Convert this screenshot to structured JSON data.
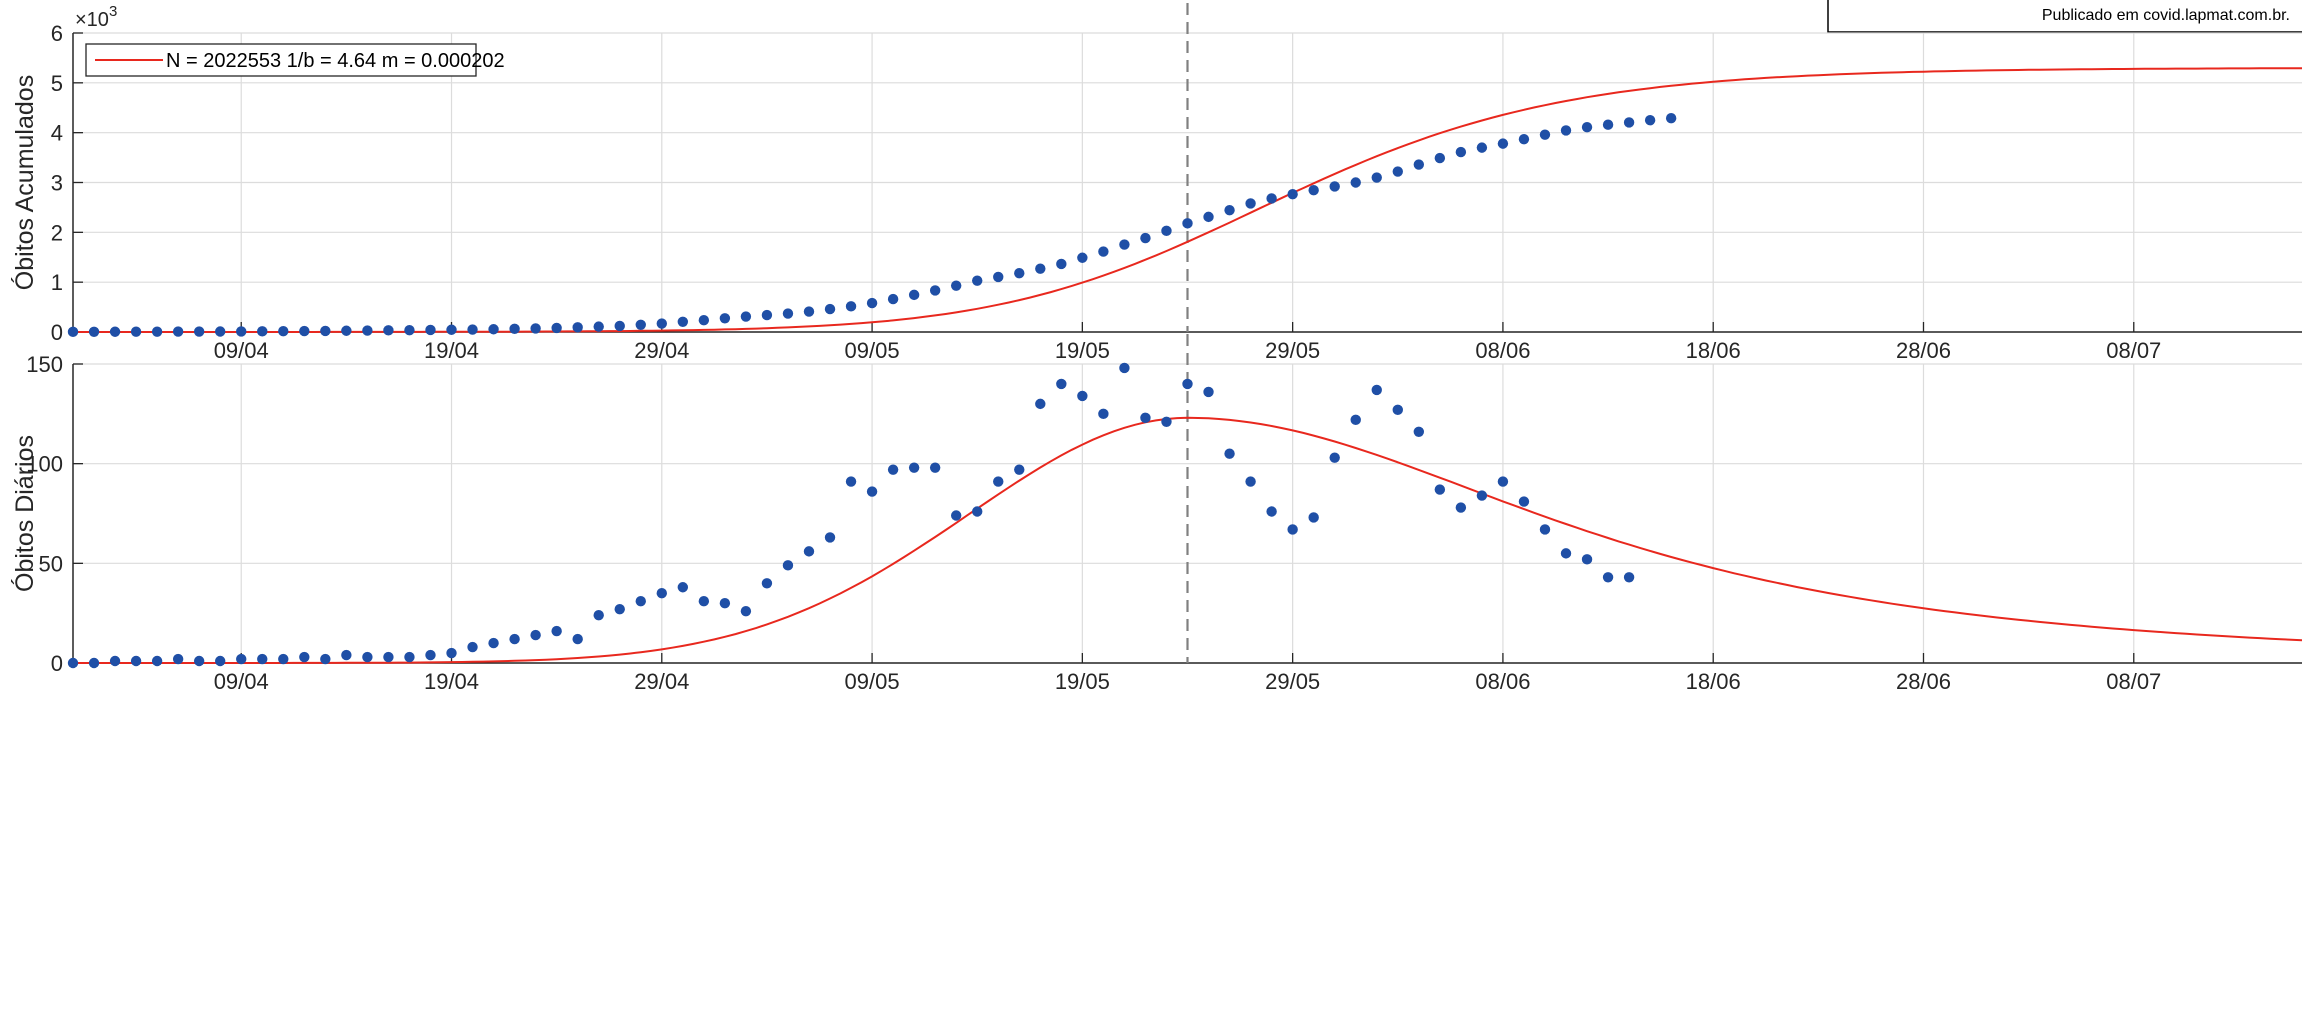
{
  "credit": "Publicado em covid.lapmat.com.br.",
  "colors": {
    "fit": "#e8281e",
    "points": "#1f4fa6",
    "grid": "#dcdcdc",
    "axis": "#262626",
    "peak_line": "#808080"
  },
  "chart_data": [
    {
      "type": "scatter",
      "ylabel": "Óbitos Acumulados",
      "y_multiplier": "×10",
      "y_multiplier_exp": "3",
      "x_tick_labels": [
        "09/04",
        "19/04",
        "29/04",
        "09/05",
        "19/05",
        "29/05",
        "08/06",
        "18/06",
        "28/06",
        "08/07"
      ],
      "y_tick_labels": [
        "0",
        "1",
        "2",
        "3",
        "4",
        "5",
        "6"
      ],
      "ylim": [
        0,
        6000
      ],
      "xlim": [
        "2020-04-01",
        "2020-07-16"
      ],
      "grid": true,
      "legend": {
        "position": "top-left",
        "entries": [
          "N = 2022553 1/b = 4.64 m = 0.000202"
        ]
      },
      "peak_marker_date": "2020-05-24",
      "series": [
        {
          "kind": "observed",
          "x_start": "2020-04-01",
          "values": [
            3,
            4,
            5,
            6,
            7,
            8,
            9,
            10,
            11,
            13,
            16,
            19,
            22,
            25,
            29,
            33,
            37,
            41,
            45,
            49,
            55,
            63,
            72,
            82,
            94,
            108,
            121,
            145,
            170,
            205,
            237,
            275,
            310,
            340,
            370,
            410,
            460,
            515,
            580,
            660,
            745,
            835,
            930,
            1030,
            1105,
            1180,
            1270,
            1365,
            1490,
            1615,
            1755,
            1885,
            2030,
            2180,
            2310,
            2445,
            2580,
            2680,
            2765,
            2845,
            2920,
            3000,
            3100,
            3220,
            3360,
            3490,
            3610,
            3700,
            3780,
            3870,
            3960,
            4045,
            4110,
            4160,
            4205,
            4250,
            4290
          ]
        },
        {
          "kind": "fit",
          "x_start": "2020-04-01",
          "x_end": "2020-07-16",
          "peak_date": "2020-05-24",
          "peak_value": 2200,
          "final_value": 5300,
          "growth_rate_b": 0.2155,
          "asymmetry_m": 0.000202
        }
      ]
    },
    {
      "type": "scatter",
      "ylabel": "Óbitos Diários",
      "x_tick_labels": [
        "09/04",
        "19/04",
        "29/04",
        "09/05",
        "19/05",
        "29/05",
        "08/06",
        "18/06",
        "28/06",
        "08/07"
      ],
      "y_tick_labels": [
        "0",
        "50",
        "100",
        "150"
      ],
      "ylim": [
        0,
        150
      ],
      "xlim": [
        "2020-04-01",
        "2020-07-16"
      ],
      "grid": true,
      "peak_marker_date": "2020-05-24",
      "series": [
        {
          "kind": "observed",
          "x_start": "2020-04-01",
          "values": [
            0,
            0,
            1,
            1,
            1,
            2,
            1,
            1,
            2,
            2,
            2,
            3,
            2,
            4,
            3,
            3,
            3,
            4,
            5,
            8,
            10,
            12,
            14,
            16,
            12,
            24,
            27,
            31,
            35,
            38,
            31,
            30,
            26,
            40,
            49,
            56,
            63,
            91,
            86,
            97,
            98,
            98,
            74,
            76,
            91,
            97,
            130,
            140,
            134,
            125,
            148,
            123,
            121,
            140,
            136,
            105,
            91,
            76,
            67,
            73,
            103,
            122,
            137,
            127,
            116,
            87,
            78,
            84,
            91,
            81,
            67,
            55,
            52,
            43,
            43
          ]
        },
        {
          "kind": "fit",
          "x_start": "2020-04-01",
          "x_end": "2020-07-16",
          "peak_date": "2020-05-24",
          "peak_value": 123,
          "end_value": 11
        }
      ]
    }
  ]
}
